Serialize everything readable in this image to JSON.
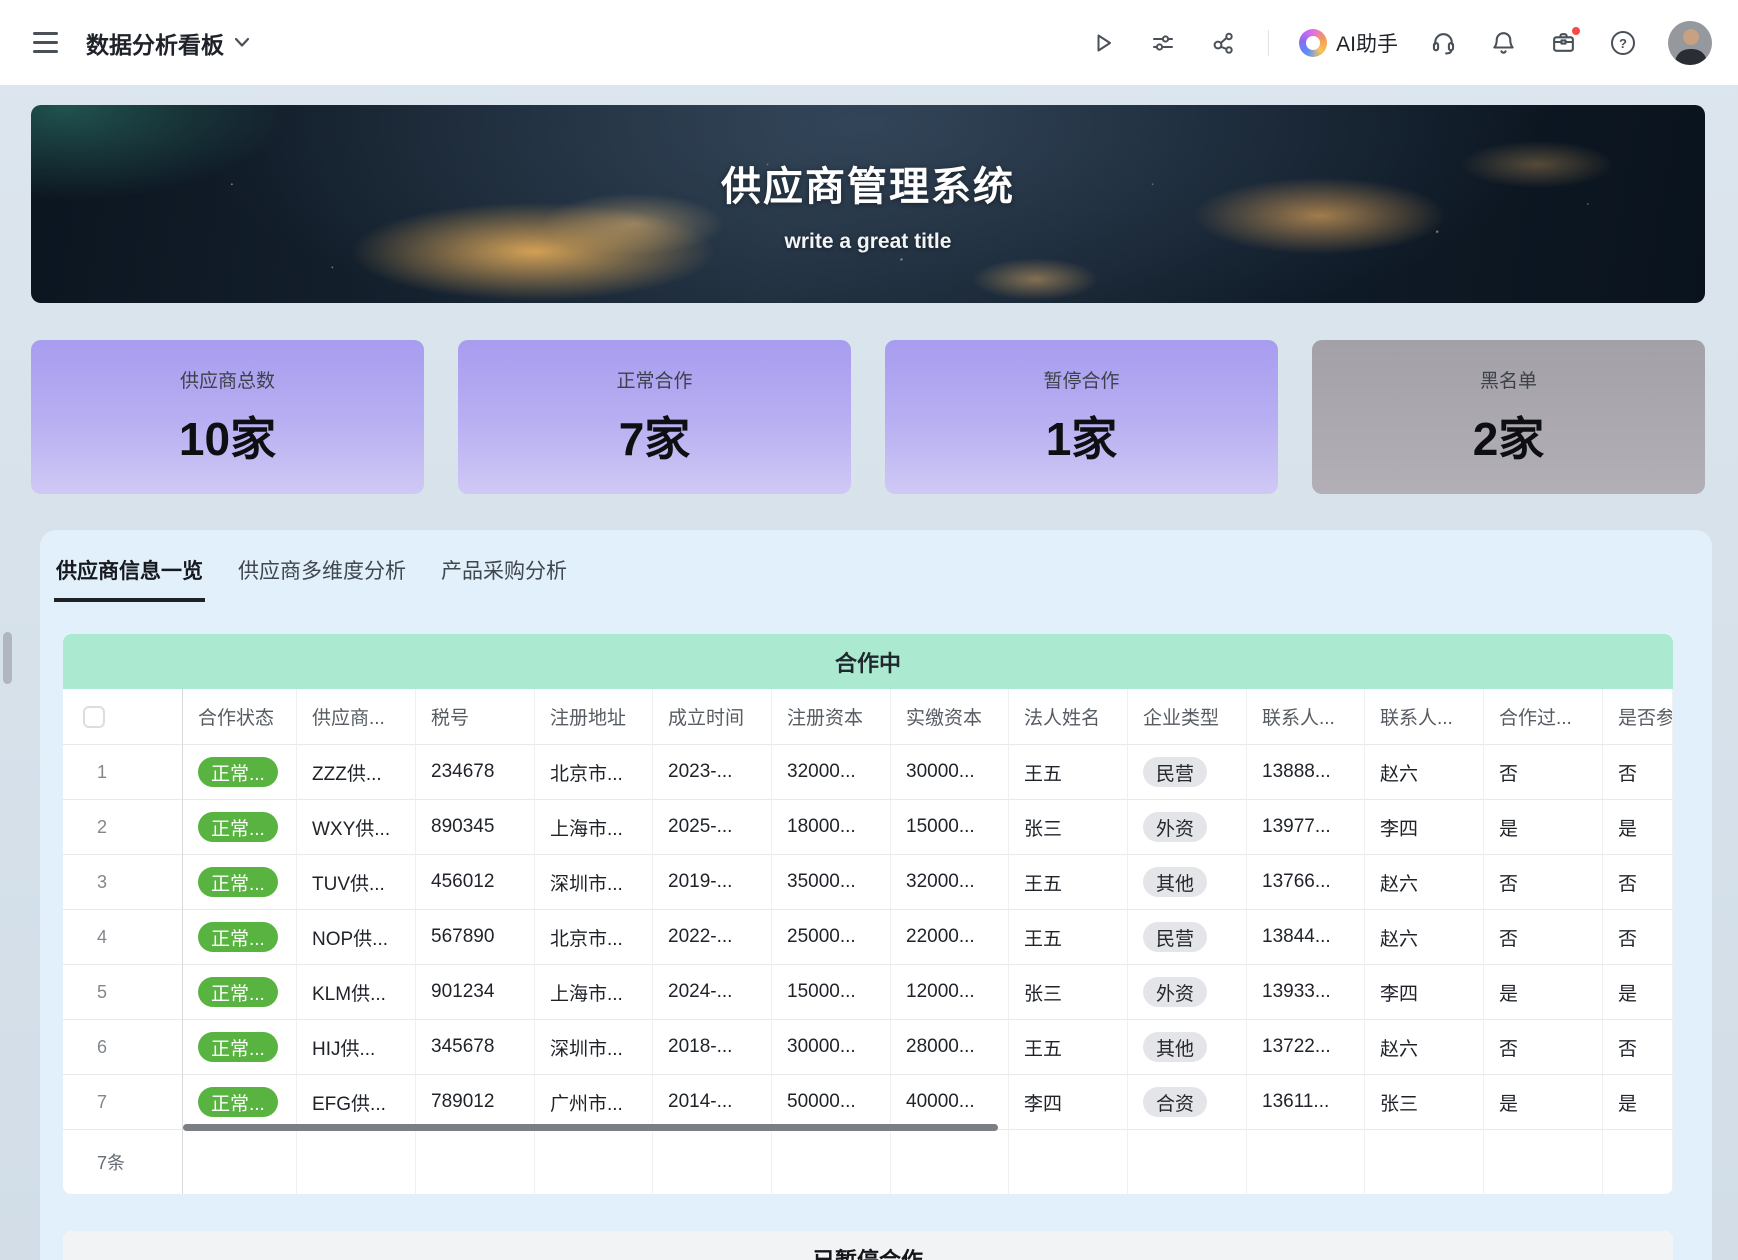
{
  "topbar": {
    "title": "数据分析看板",
    "ai_label": "AI助手",
    "icons": [
      "menu-icon",
      "chevron-down-icon",
      "play-icon",
      "sliders-icon",
      "share-icon",
      "ai-logo-icon",
      "headset-icon",
      "bell-icon",
      "briefcase-icon",
      "help-icon",
      "avatar"
    ],
    "briefcase_has_notification": true
  },
  "hero": {
    "title": "供应商管理系统",
    "subtitle": "write a great title"
  },
  "stats": [
    {
      "label": "供应商总数",
      "value": "10家",
      "variant": "purple"
    },
    {
      "label": "正常合作",
      "value": "7家",
      "variant": "purple"
    },
    {
      "label": "暂停合作",
      "value": "1家",
      "variant": "purple"
    },
    {
      "label": "黑名单",
      "value": "2家",
      "variant": "gray"
    }
  ],
  "tabs": [
    {
      "label": "供应商信息一览",
      "active": true
    },
    {
      "label": "供应商多维度分析",
      "active": false
    },
    {
      "label": "产品采购分析",
      "active": false
    }
  ],
  "table": {
    "group_title": "合作中",
    "columns": [
      "合作状态",
      "供应商...",
      "税号",
      "注册地址",
      "成立时间",
      "注册资本",
      "实缴资本",
      "法人姓名",
      "企业类型",
      "联系人...",
      "联系人...",
      "合作过...",
      "是否参与..."
    ],
    "rows": [
      {
        "num": "1",
        "status": "正常...",
        "name": "ZZZ供...",
        "tax": "234678",
        "address": "北京市...",
        "founded": "2023-...",
        "reg_capital": "32000...",
        "paid_capital": "30000...",
        "legal_person": "王五",
        "company_type": "民营",
        "contact_phone": "13888...",
        "contact_name": "赵六",
        "coop": "否",
        "participate": "否"
      },
      {
        "num": "2",
        "status": "正常...",
        "name": "WXY供...",
        "tax": "890345",
        "address": "上海市...",
        "founded": "2025-...",
        "reg_capital": "18000...",
        "paid_capital": "15000...",
        "legal_person": "张三",
        "company_type": "外资",
        "contact_phone": "13977...",
        "contact_name": "李四",
        "coop": "是",
        "participate": "是"
      },
      {
        "num": "3",
        "status": "正常...",
        "name": "TUV供...",
        "tax": "456012",
        "address": "深圳市...",
        "founded": "2019-...",
        "reg_capital": "35000...",
        "paid_capital": "32000...",
        "legal_person": "王五",
        "company_type": "其他",
        "contact_phone": "13766...",
        "contact_name": "赵六",
        "coop": "否",
        "participate": "否"
      },
      {
        "num": "4",
        "status": "正常...",
        "name": "NOP供...",
        "tax": "567890",
        "address": "北京市...",
        "founded": "2022-...",
        "reg_capital": "25000...",
        "paid_capital": "22000...",
        "legal_person": "王五",
        "company_type": "民营",
        "contact_phone": "13844...",
        "contact_name": "赵六",
        "coop": "否",
        "participate": "否"
      },
      {
        "num": "5",
        "status": "正常...",
        "name": "KLM供...",
        "tax": "901234",
        "address": "上海市...",
        "founded": "2024-...",
        "reg_capital": "15000...",
        "paid_capital": "12000...",
        "legal_person": "张三",
        "company_type": "外资",
        "contact_phone": "13933...",
        "contact_name": "李四",
        "coop": "是",
        "participate": "是"
      },
      {
        "num": "6",
        "status": "正常...",
        "name": "HIJ供...",
        "tax": "345678",
        "address": "深圳市...",
        "founded": "2018-...",
        "reg_capital": "30000...",
        "paid_capital": "28000...",
        "legal_person": "王五",
        "company_type": "其他",
        "contact_phone": "13722...",
        "contact_name": "赵六",
        "coop": "否",
        "participate": "否"
      },
      {
        "num": "7",
        "status": "正常...",
        "name": "EFG供...",
        "tax": "789012",
        "address": "广州市...",
        "founded": "2014-...",
        "reg_capital": "50000...",
        "paid_capital": "40000...",
        "legal_person": "李四",
        "company_type": "合资",
        "contact_phone": "13611...",
        "contact_name": "张三",
        "coop": "是",
        "participate": "是"
      }
    ],
    "footer_count": "7条"
  },
  "next_section": {
    "group_title": "已暂停合作"
  },
  "colors": {
    "group_header_green": "#ABE9D1",
    "status_pill_green": "#58B340",
    "stat_card_purple_top": "#A79CEF",
    "stat_card_purple_bottom": "#CFC9F4",
    "stat_card_gray": "#A8A5AC",
    "notification_red": "#F54A45",
    "panel_blue": "#E2F0FB"
  }
}
